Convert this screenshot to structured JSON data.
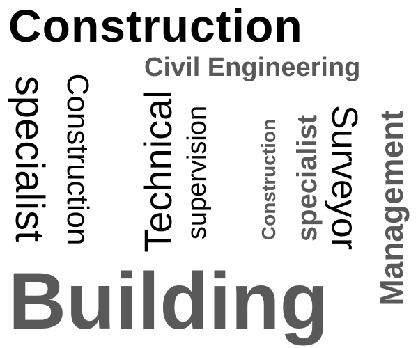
{
  "words": {
    "title": "Construction",
    "civil_engineering": "Civil Engineering",
    "specialist_1": "specialist",
    "construction_2": "Construction",
    "technical": "Technical",
    "supervision": "supervision",
    "construction_3": "Construction",
    "specialist_2": "specialist",
    "surveyor": "Surveyor",
    "management": "Management",
    "building": "Building"
  },
  "colors": {
    "black": "#000000",
    "gray": "#595959",
    "background": "#ffffff"
  }
}
